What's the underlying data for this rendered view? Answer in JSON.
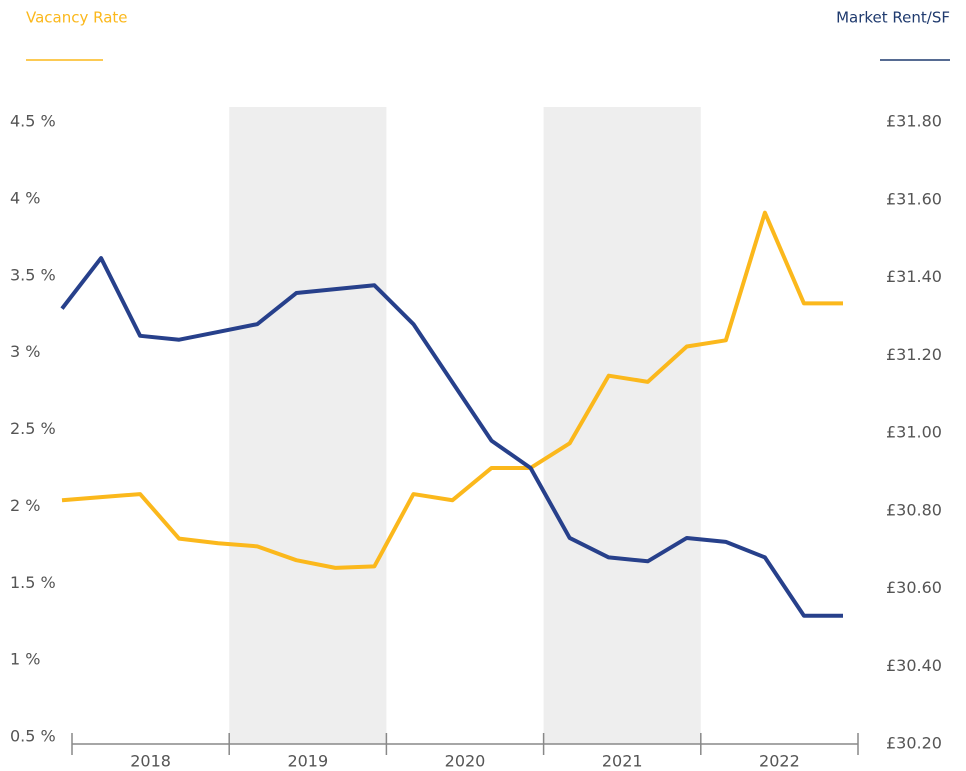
{
  "chart_data": {
    "type": "line",
    "categories": [
      "2018",
      "2019",
      "2020",
      "2021",
      "2022"
    ],
    "band_shading": [
      false,
      true,
      false,
      true,
      false
    ],
    "x": [
      2018,
      2018.25,
      2018.5,
      2018.75,
      2019,
      2019.25,
      2019.5,
      2019.75,
      2020,
      2020.25,
      2020.5,
      2020.75,
      2021,
      2021.25,
      2021.5,
      2021.75,
      2022,
      2022.25,
      2022.5,
      2022.75,
      2023
    ],
    "xlim": [
      2018,
      2023
    ],
    "series": [
      {
        "name": "Vacancy Rate",
        "color": "#fbb81c",
        "axis": "y",
        "values": [
          2.04,
          2.06,
          2.08,
          1.79,
          1.76,
          1.74,
          1.65,
          1.6,
          1.61,
          2.08,
          2.04,
          2.25,
          2.25,
          2.41,
          2.85,
          2.81,
          3.04,
          3.08,
          3.91,
          3.32,
          3.32
        ]
      },
      {
        "name": "Market Rent/SF",
        "color": "#27408b",
        "axis": "y2",
        "values": [
          31.32,
          31.45,
          31.25,
          31.24,
          31.26,
          31.28,
          31.36,
          31.37,
          31.38,
          31.28,
          31.13,
          30.98,
          30.91,
          30.73,
          30.68,
          30.67,
          30.73,
          30.72,
          30.68,
          30.53,
          30.53
        ]
      }
    ],
    "ylim": [
      0.5,
      4.5
    ],
    "yticks": [
      {
        "value": 0.5,
        "label": "0.5 %"
      },
      {
        "value": 1,
        "label": "1 %"
      },
      {
        "value": 1.5,
        "label": "1.5 %"
      },
      {
        "value": 2,
        "label": "2 %"
      },
      {
        "value": 2.5,
        "label": "2.5 %"
      },
      {
        "value": 3,
        "label": "3 %"
      },
      {
        "value": 3.5,
        "label": "3.5 %"
      },
      {
        "value": 4,
        "label": "4 %"
      },
      {
        "value": 4.5,
        "label": "4.5 %"
      }
    ],
    "y2lim": [
      30.2,
      31.8
    ],
    "y2ticks": [
      {
        "value": 30.2,
        "label": "£30.20"
      },
      {
        "value": 30.4,
        "label": "£30.40"
      },
      {
        "value": 30.6,
        "label": "£30.60"
      },
      {
        "value": 30.8,
        "label": "£30.80"
      },
      {
        "value": 31.0,
        "label": "£31.00"
      },
      {
        "value": 31.2,
        "label": "£31.20"
      },
      {
        "value": 31.4,
        "label": "£31.40"
      },
      {
        "value": 31.6,
        "label": "£31.60"
      },
      {
        "value": 31.8,
        "label": "£31.80"
      }
    ]
  }
}
